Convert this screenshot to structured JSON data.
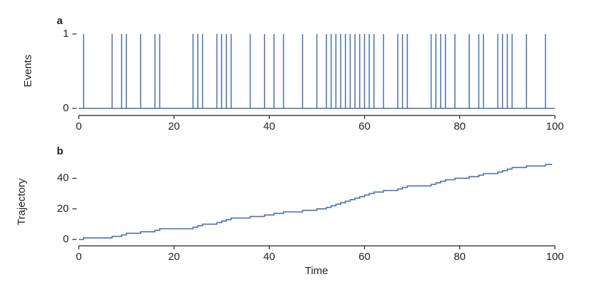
{
  "chart_data": [
    {
      "type": "events",
      "label": "a",
      "ylabel": "Events",
      "color": "#4a6fb0",
      "x": [
        1,
        7,
        9,
        10,
        13,
        16,
        17,
        24,
        25,
        26,
        29,
        30,
        31,
        32,
        36,
        39,
        41,
        43,
        47,
        50,
        52,
        53,
        54,
        55,
        56,
        57,
        58,
        59,
        60,
        61,
        62,
        64,
        67,
        68,
        69,
        74,
        75,
        76,
        77,
        79,
        82,
        84,
        85,
        88,
        89,
        90,
        91,
        94,
        98
      ],
      "values": [
        1,
        1,
        1,
        1,
        1,
        1,
        1,
        1,
        1,
        1,
        1,
        1,
        1,
        1,
        1,
        1,
        1,
        1,
        1,
        1,
        1,
        1,
        1,
        1,
        1,
        1,
        1,
        1,
        1,
        1,
        1,
        1,
        1,
        1,
        1,
        1,
        1,
        1,
        1,
        1,
        1,
        1,
        1,
        1,
        1,
        1,
        1,
        1,
        1
      ],
      "xlim": [
        0,
        100
      ],
      "xticks": [
        0,
        20,
        40,
        60,
        80,
        100
      ],
      "ylim": [
        0,
        1
      ],
      "yticks": [
        0,
        1
      ]
    },
    {
      "type": "step",
      "label": "b",
      "ylabel": "Trajectory",
      "xlabel": "Time",
      "color": "#4a6fb0",
      "x": [
        0,
        1,
        7,
        9,
        10,
        13,
        16,
        17,
        24,
        25,
        26,
        29,
        30,
        31,
        32,
        36,
        39,
        41,
        43,
        47,
        50,
        52,
        53,
        54,
        55,
        56,
        57,
        58,
        59,
        60,
        61,
        62,
        64,
        67,
        68,
        69,
        74,
        75,
        76,
        77,
        79,
        82,
        84,
        85,
        88,
        89,
        90,
        91,
        94,
        98
      ],
      "values": [
        0,
        1,
        2,
        3,
        4,
        5,
        6,
        7,
        8,
        9,
        10,
        11,
        12,
        13,
        14,
        15,
        16,
        17,
        18,
        19,
        20,
        21,
        22,
        23,
        24,
        25,
        26,
        27,
        28,
        29,
        30,
        31,
        32,
        33,
        34,
        35,
        36,
        37,
        38,
        39,
        40,
        41,
        42,
        43,
        44,
        45,
        46,
        47,
        48,
        49
      ],
      "xlim": [
        0,
        100
      ],
      "xticks": [
        0,
        20,
        40,
        60,
        80,
        100
      ],
      "ylim": [
        0,
        50
      ],
      "yticks": [
        0,
        20,
        40
      ]
    }
  ]
}
